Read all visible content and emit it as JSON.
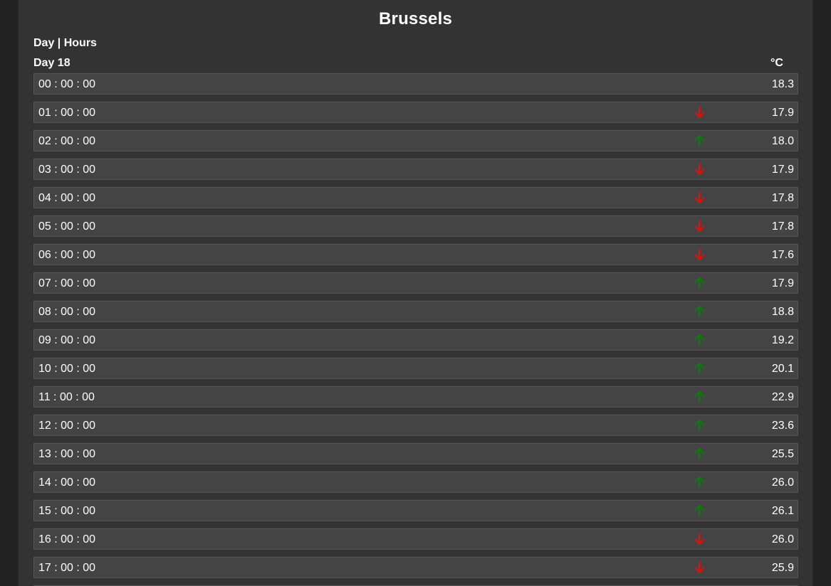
{
  "page": {
    "title": "Brussels",
    "subtitle": "Day | Hours",
    "day_label": "Day 18",
    "unit_label": "°C"
  },
  "colors": {
    "up": "#0d7a0d",
    "down": "#e01010"
  },
  "rows": [
    {
      "time": "00 : 00 : 00",
      "temp": "18.3",
      "trend": "none"
    },
    {
      "time": "01 : 00 : 00",
      "temp": "17.9",
      "trend": "down"
    },
    {
      "time": "02 : 00 : 00",
      "temp": "18.0",
      "trend": "up"
    },
    {
      "time": "03 : 00 : 00",
      "temp": "17.9",
      "trend": "down"
    },
    {
      "time": "04 : 00 : 00",
      "temp": "17.8",
      "trend": "down"
    },
    {
      "time": "05 : 00 : 00",
      "temp": "17.8",
      "trend": "down"
    },
    {
      "time": "06 : 00 : 00",
      "temp": "17.6",
      "trend": "down"
    },
    {
      "time": "07 : 00 : 00",
      "temp": "17.9",
      "trend": "up"
    },
    {
      "time": "08 : 00 : 00",
      "temp": "18.8",
      "trend": "up"
    },
    {
      "time": "09 : 00 : 00",
      "temp": "19.2",
      "trend": "up"
    },
    {
      "time": "10 : 00 : 00",
      "temp": "20.1",
      "trend": "up"
    },
    {
      "time": "11 : 00 : 00",
      "temp": "22.9",
      "trend": "up"
    },
    {
      "time": "12 : 00 : 00",
      "temp": "23.6",
      "trend": "up"
    },
    {
      "time": "13 : 00 : 00",
      "temp": "25.5",
      "trend": "up"
    },
    {
      "time": "14 : 00 : 00",
      "temp": "26.0",
      "trend": "up"
    },
    {
      "time": "15 : 00 : 00",
      "temp": "26.1",
      "trend": "up"
    },
    {
      "time": "16 : 00 : 00",
      "temp": "26.0",
      "trend": "down"
    },
    {
      "time": "17 : 00 : 00",
      "temp": "25.9",
      "trend": "down"
    },
    {
      "time": "",
      "temp": "",
      "trend": "none"
    }
  ]
}
